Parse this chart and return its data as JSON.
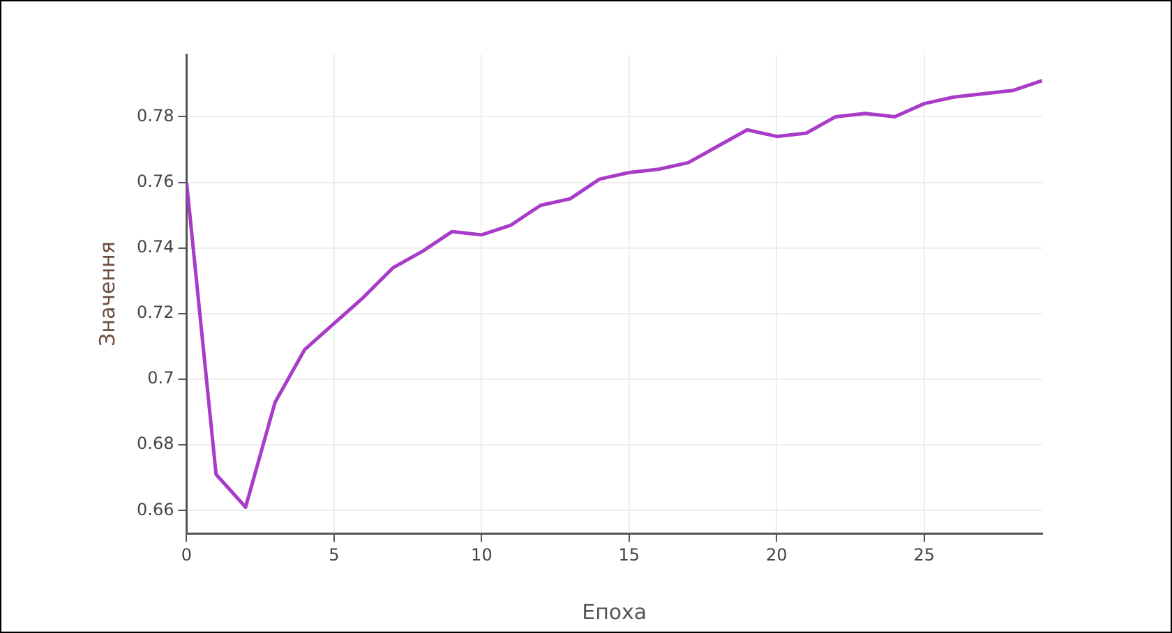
{
  "chart_data": {
    "type": "line",
    "xlabel": "Епоха",
    "ylabel": "Значення",
    "x": [
      0,
      1,
      2,
      3,
      4,
      5,
      6,
      7,
      8,
      9,
      10,
      11,
      12,
      13,
      14,
      15,
      16,
      17,
      18,
      19,
      20,
      21,
      22,
      23,
      24,
      25,
      26,
      27,
      28,
      29
    ],
    "series": [
      {
        "color": "#a83cc8",
        "values": [
          0.76,
          0.671,
          0.661,
          0.693,
          0.709,
          0.717,
          0.725,
          0.734,
          0.739,
          0.745,
          0.744,
          0.747,
          0.753,
          0.755,
          0.761,
          0.763,
          0.764,
          0.766,
          0.771,
          0.776,
          0.774,
          0.775,
          0.78,
          0.781,
          0.78,
          0.784,
          0.786,
          0.787,
          0.788,
          0.791
        ]
      }
    ],
    "xlim": [
      0,
      29
    ],
    "xticks": [
      0,
      5,
      10,
      15,
      20,
      25
    ],
    "ylim": [
      0.653,
      0.799
    ],
    "yticks": [
      0.66,
      0.68,
      0.7,
      0.72,
      0.74,
      0.76,
      0.78
    ],
    "grid": true,
    "marker": "none",
    "line_style": "solid",
    "legend": false
  }
}
